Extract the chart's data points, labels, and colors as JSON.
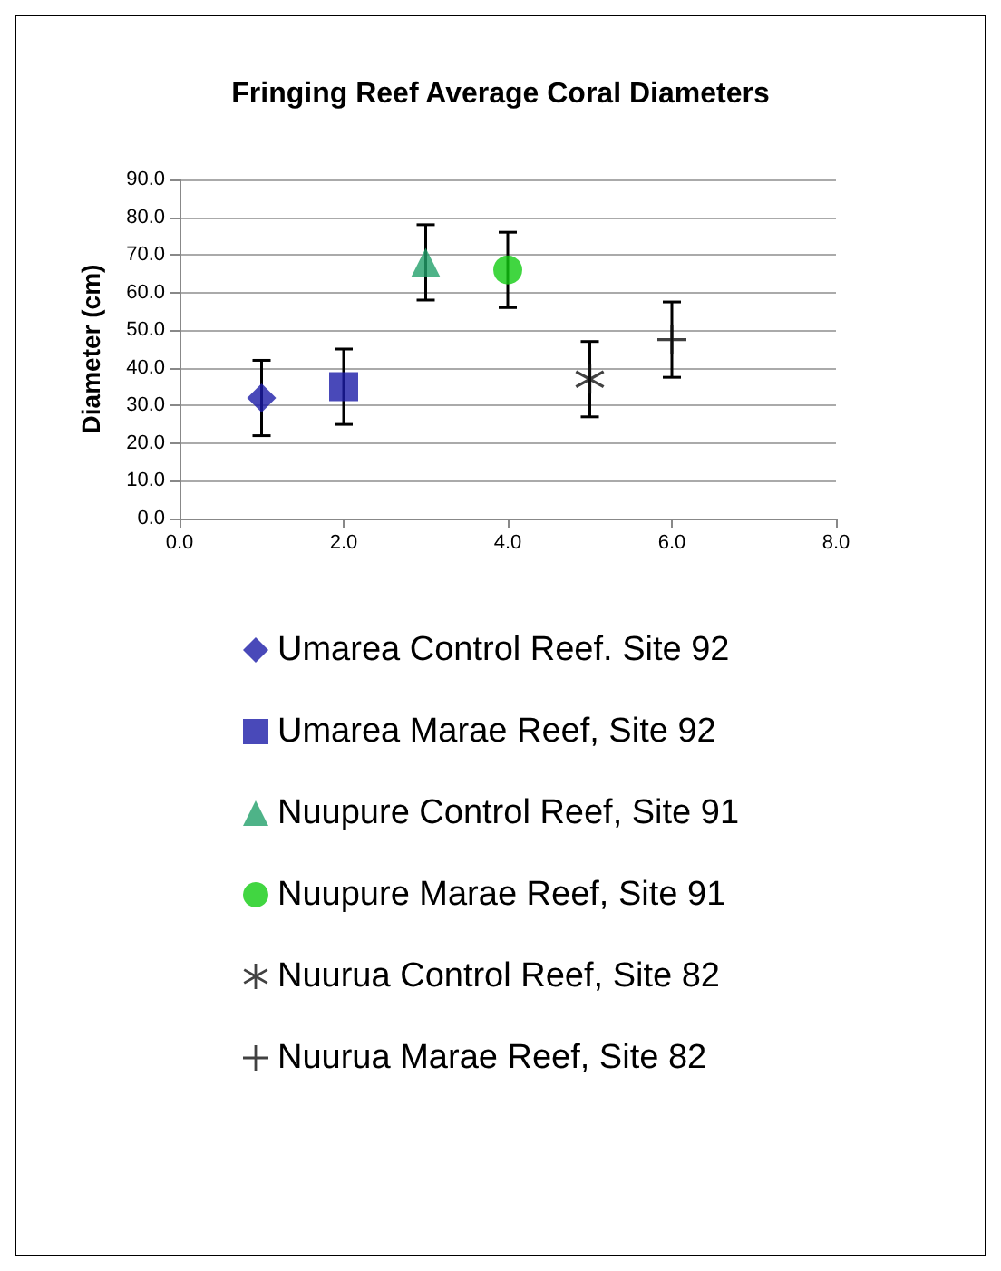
{
  "chart_data": {
    "type": "scatter",
    "title": "Fringing Reef Average Coral Diameters",
    "ylabel": "Diameter (cm)",
    "xlim": [
      0,
      8
    ],
    "xticks": [
      {
        "value": 0,
        "label": "0.0"
      },
      {
        "value": 2,
        "label": "2.0"
      },
      {
        "value": 4,
        "label": "4.0"
      },
      {
        "value": 6,
        "label": "6.0"
      },
      {
        "value": 8,
        "label": "8.0"
      }
    ],
    "ylim": [
      0,
      90
    ],
    "yticks": [
      {
        "value": 0,
        "label": "0.0"
      },
      {
        "value": 10,
        "label": "10.0"
      },
      {
        "value": 20,
        "label": "20.0"
      },
      {
        "value": 30,
        "label": "30.0"
      },
      {
        "value": 40,
        "label": "40.0"
      },
      {
        "value": 50,
        "label": "50.0"
      },
      {
        "value": 60,
        "label": "60.0"
      },
      {
        "value": 70,
        "label": "70.0"
      },
      {
        "value": 80,
        "label": "80.0"
      },
      {
        "value": 90,
        "label": "90.0"
      }
    ],
    "grid": "y",
    "legend": "bottom",
    "series": [
      {
        "name": "Umarea Control Reef. Site 92",
        "color": "#1c1ca8",
        "marker": "diamond",
        "x": [
          1
        ],
        "values": [
          32
        ],
        "errors": [
          10
        ]
      },
      {
        "name": "Umarea Marae Reef, Site 92",
        "color": "#1c1ca8",
        "marker": "square",
        "x": [
          2
        ],
        "values": [
          35
        ],
        "errors": [
          10
        ]
      },
      {
        "name": "Nuupure Control Reef, Site 91",
        "color": "#22a06a",
        "marker": "triangle",
        "x": [
          3
        ],
        "values": [
          68
        ],
        "errors": [
          10
        ]
      },
      {
        "name": "Nuupure Marae Reef, Site 91",
        "color": "#11cc11",
        "marker": "circle",
        "x": [
          4
        ],
        "values": [
          66
        ],
        "errors": [
          10
        ]
      },
      {
        "name": "Nuurua Control Reef, Site 82",
        "color": "#111111",
        "marker": "star",
        "x": [
          5
        ],
        "values": [
          37
        ],
        "errors": [
          10
        ]
      },
      {
        "name": "Nuurua Marae Reef, Site 82",
        "color": "#111111",
        "marker": "cross",
        "x": [
          6
        ],
        "values": [
          47.5
        ],
        "errors": [
          10
        ]
      }
    ]
  }
}
